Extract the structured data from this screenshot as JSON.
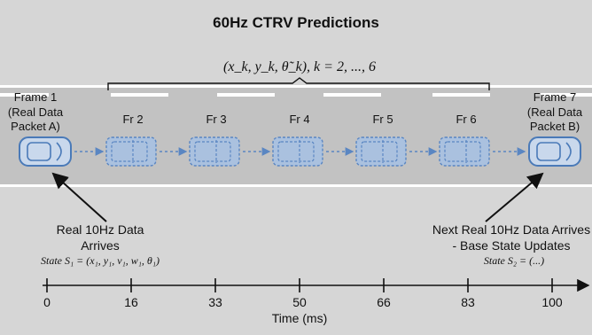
{
  "title": "60Hz CTRV Predictions",
  "prediction_label": "(x_k, y_k, θ̃_k), k = 2, ..., 6",
  "frame_start": {
    "line1": "Frame 1",
    "line2": "(Real Data",
    "line3": "Packet A)"
  },
  "frame_end": {
    "line1": "Frame 7",
    "line2": "(Real Data",
    "line3": "Packet B)"
  },
  "predicted_frames": [
    "Fr 2",
    "Fr 3",
    "Fr 4",
    "Fr 5",
    "Fr 6"
  ],
  "annotation_left": {
    "line1": "Real 10Hz Data",
    "line2": "Arrives",
    "state": "State S₁ = (x₁, y₁, v₁, w₁, θ₁)"
  },
  "annotation_right": {
    "line1": "Next Real 10Hz Data Arrives",
    "line2": "- Base State Updates",
    "state": "State S₂ = (...)"
  },
  "timeline": {
    "ticks": [
      "0",
      "16",
      "33",
      "50",
      "66",
      "83",
      "100"
    ],
    "label": "Time (ms)"
  },
  "colors": {
    "background": "#d6d6d6",
    "road": "#c2c2c2",
    "lane_line": "#ffffff",
    "car_outline": "#4a7ab8",
    "car_fill": "#c9d8ec",
    "predicted_car_fill": "#aac1df",
    "arrow": "#5a86c2"
  }
}
